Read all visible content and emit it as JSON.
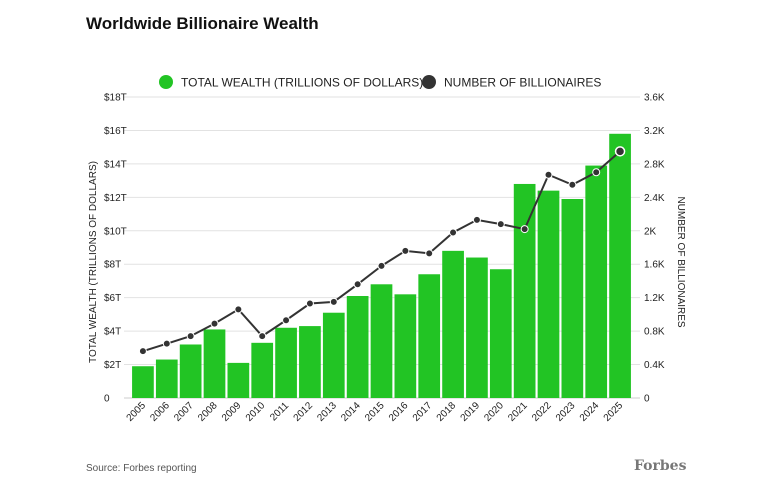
{
  "header": {
    "title": "Worldwide Billionaire Wealth"
  },
  "footer": {
    "source": "Source: Forbes reporting",
    "brand": "Forbes"
  },
  "chart_data": {
    "type": "bar",
    "title": "Worldwide Billionaire Wealth",
    "categories": [
      "2005",
      "2006",
      "2007",
      "2008",
      "2009",
      "2010",
      "2011",
      "2012",
      "2013",
      "2014",
      "2015",
      "2016",
      "2017",
      "2018",
      "2019",
      "2020",
      "2021",
      "2022",
      "2023",
      "2024",
      "2025"
    ],
    "series": [
      {
        "name": "TOTAL WEALTH (TRILLIONS OF DOLLARS)",
        "type": "bar",
        "axis": "left",
        "color": "#22c424",
        "values": [
          1.9,
          2.3,
          3.2,
          4.1,
          2.1,
          3.3,
          4.2,
          4.3,
          5.1,
          6.1,
          6.8,
          6.2,
          7.4,
          8.8,
          8.4,
          7.7,
          12.8,
          12.4,
          11.9,
          13.9,
          15.8
        ]
      },
      {
        "name": "NUMBER OF BILLIONAIRES",
        "type": "line",
        "axis": "right",
        "color": "#333333",
        "values": [
          560,
          650,
          740,
          890,
          1060,
          740,
          930,
          1130,
          1150,
          1360,
          1580,
          1760,
          1730,
          1980,
          2130,
          2080,
          2020,
          2670,
          2550,
          2700,
          2950
        ]
      }
    ],
    "ylabel": "TOTAL WEALTH (TRILLIONS OF DOLLARS)",
    "ylabel_right": "NUMBER OF BILLIONAIRES",
    "ylim": [
      0,
      18
    ],
    "ylim_right": [
      0,
      3600
    ],
    "yticks": [
      "0",
      "$2T",
      "$4T",
      "$6T",
      "$8T",
      "$10T",
      "$12T",
      "$14T",
      "$16T",
      "$18T"
    ],
    "yticks_right": [
      "0",
      "0.4K",
      "0.8K",
      "1.2K",
      "1.6K",
      "2K",
      "2.4K",
      "2.8K",
      "3.2K",
      "3.6K"
    ],
    "grid": true,
    "legend": "top-center"
  }
}
